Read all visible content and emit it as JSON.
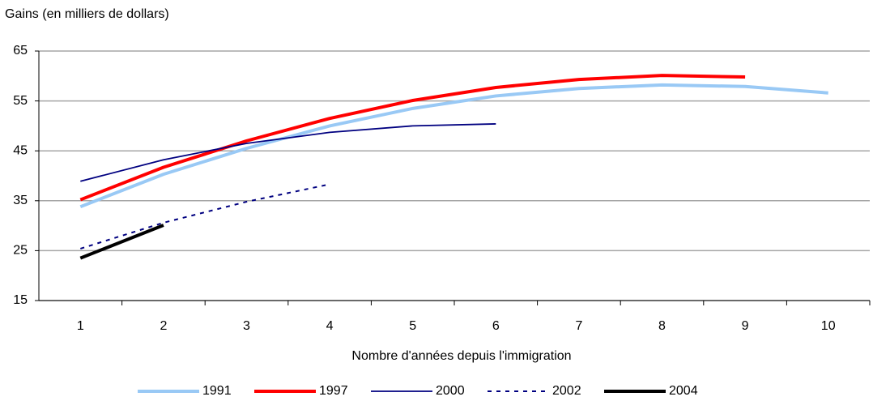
{
  "chart_data": {
    "type": "line",
    "y_axis_label": "Gains (en milliers de dollars)",
    "x_axis_label": "Nombre d'années depuis l'immigration",
    "categories": [
      "1",
      "2",
      "3",
      "4",
      "5",
      "6",
      "7",
      "8",
      "9",
      "10"
    ],
    "series": [
      {
        "name": "1991",
        "color": "#99c9f5",
        "values": [
          33.8,
          40.3,
          45.5,
          50,
          53.5,
          56,
          57.5,
          58.2,
          57.9,
          56.6
        ]
      },
      {
        "name": "1997",
        "color": "#ff0000",
        "values": [
          35.2,
          41.7,
          47,
          51.5,
          55.1,
          57.7,
          59.3,
          60.1,
          59.8,
          null
        ]
      },
      {
        "name": "2000",
        "color": "#000080",
        "values": [
          38.9,
          43.2,
          46.5,
          48.7,
          50,
          50.4,
          null,
          null,
          null,
          null
        ]
      },
      {
        "name": "2002",
        "color": "#000080",
        "dashed": true,
        "values": [
          25.4,
          30.6,
          34.8,
          38.3,
          null,
          null,
          null,
          null,
          null,
          null
        ]
      },
      {
        "name": "2004",
        "color": "#000000",
        "values": [
          23.5,
          30.1,
          null,
          null,
          null,
          null,
          null,
          null,
          null,
          null
        ]
      }
    ],
    "ylim": [
      15,
      65
    ],
    "yticks": [
      15,
      25,
      35,
      45,
      55,
      65
    ],
    "grid": true,
    "legend": "bottom"
  }
}
